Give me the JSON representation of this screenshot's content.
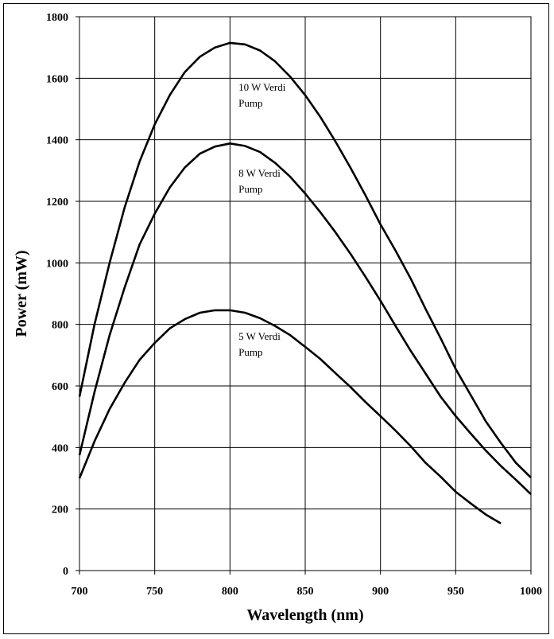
{
  "chart_data": {
    "type": "line",
    "title": "",
    "xlabel": "Wavelength (nm)",
    "ylabel": "Power (mW)",
    "xlim": [
      700,
      1000
    ],
    "ylim": [
      0,
      1800
    ],
    "xticks": [
      "700",
      "750",
      "800",
      "850",
      "900",
      "950",
      "1000"
    ],
    "yticks": [
      "0",
      "200",
      "400",
      "600",
      "800",
      "1000",
      "1200",
      "1400",
      "1600",
      "1800"
    ],
    "grid": true,
    "legend": "inline annotations",
    "series": [
      {
        "name": "10 W Verdi Pump",
        "label_lines": [
          "10 W Verdi",
          "Pump"
        ],
        "x": [
          700,
          710,
          720,
          730,
          740,
          750,
          760,
          770,
          780,
          790,
          800,
          810,
          820,
          830,
          840,
          850,
          860,
          870,
          880,
          890,
          900,
          910,
          920,
          930,
          940,
          950,
          960,
          970,
          980,
          990,
          1000
        ],
        "y": [
          565,
          800,
          1000,
          1180,
          1330,
          1450,
          1545,
          1620,
          1670,
          1700,
          1715,
          1710,
          1690,
          1655,
          1605,
          1545,
          1475,
          1395,
          1310,
          1220,
          1125,
          1040,
          950,
          850,
          755,
          655,
          570,
          485,
          415,
          350,
          302
        ]
      },
      {
        "name": "8 W Verdi Pump",
        "label_lines": [
          "8 W Verdi",
          "Pump"
        ],
        "x": [
          700,
          710,
          720,
          730,
          740,
          750,
          760,
          770,
          780,
          790,
          800,
          810,
          820,
          830,
          840,
          850,
          860,
          870,
          880,
          890,
          900,
          910,
          920,
          930,
          940,
          950,
          960,
          970,
          980,
          990,
          1000
        ],
        "y": [
          375,
          580,
          765,
          920,
          1060,
          1160,
          1245,
          1310,
          1355,
          1378,
          1388,
          1380,
          1360,
          1325,
          1280,
          1225,
          1165,
          1100,
          1030,
          955,
          877,
          795,
          715,
          640,
          565,
          502,
          445,
          390,
          340,
          295,
          248
        ]
      },
      {
        "name": "5 W Verdi Pump",
        "label_lines": [
          "5 W Verdi",
          "Pump"
        ],
        "x": [
          700,
          710,
          720,
          730,
          740,
          750,
          760,
          770,
          780,
          790,
          800,
          810,
          820,
          830,
          840,
          850,
          860,
          870,
          880,
          890,
          900,
          910,
          920,
          930,
          940,
          950,
          960,
          970,
          980
        ],
        "y": [
          300,
          420,
          525,
          610,
          685,
          740,
          787,
          817,
          838,
          846,
          846,
          838,
          820,
          795,
          765,
          727,
          688,
          642,
          597,
          548,
          502,
          455,
          405,
          350,
          305,
          256,
          218,
          182,
          153
        ]
      }
    ],
    "annotation_anchor": [
      {
        "x": 802,
        "y": 1560
      },
      {
        "x": 802,
        "y": 1280
      },
      {
        "x": 802,
        "y": 750
      }
    ]
  }
}
